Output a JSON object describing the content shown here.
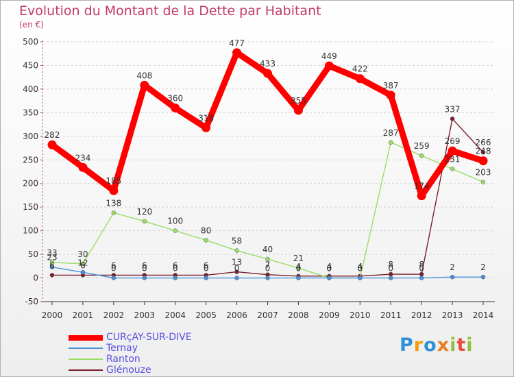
{
  "chart_data": {
    "type": "line",
    "title": "Evolution du Montant de la Dette par Habitant",
    "subtitle": "(en €)",
    "x": [
      "2000",
      "2001",
      "2002",
      "2003",
      "2004",
      "2005",
      "2006",
      "2007",
      "2008",
      "2009",
      "2010",
      "2011",
      "2012",
      "2013",
      "2014"
    ],
    "ylim": [
      -50,
      500
    ],
    "yticks": [
      -50,
      0,
      50,
      100,
      150,
      200,
      250,
      300,
      350,
      400,
      450,
      500
    ],
    "grid": "horizontal dashed",
    "legend": "bottom-left",
    "series": [
      {
        "name": "CURçAY-SUR-DIVE",
        "color": "#ff0000",
        "values": [
          282,
          234,
          185,
          408,
          360,
          318,
          477,
          433,
          355,
          449,
          422,
          387,
          174,
          269,
          248
        ]
      },
      {
        "name": "Ternay",
        "color": "#4a90d9",
        "values": [
          23,
          12,
          0,
          0,
          0,
          0,
          0,
          0,
          0,
          0,
          0,
          0,
          0,
          2,
          2
        ]
      },
      {
        "name": "Ranton",
        "color": "#99dd66",
        "values": [
          33,
          30,
          138,
          120,
          100,
          80,
          58,
          40,
          21,
          0,
          0,
          287,
          259,
          231,
          203
        ]
      },
      {
        "name": "Glénouze",
        "color": "#7a1f2a",
        "values": [
          6,
          6,
          6,
          6,
          6,
          6,
          13,
          7,
          4,
          4,
          4,
          8,
          8,
          337,
          266
        ]
      }
    ]
  },
  "brand": {
    "letters": [
      "P",
      "r",
      "o",
      "x",
      "i",
      "t",
      "i"
    ],
    "colors": [
      "#2f8fd8",
      "#f39c12",
      "#2f8fd8",
      "#e67e22",
      "#8fc13e",
      "#e74c3c",
      "#8fc13e"
    ]
  }
}
